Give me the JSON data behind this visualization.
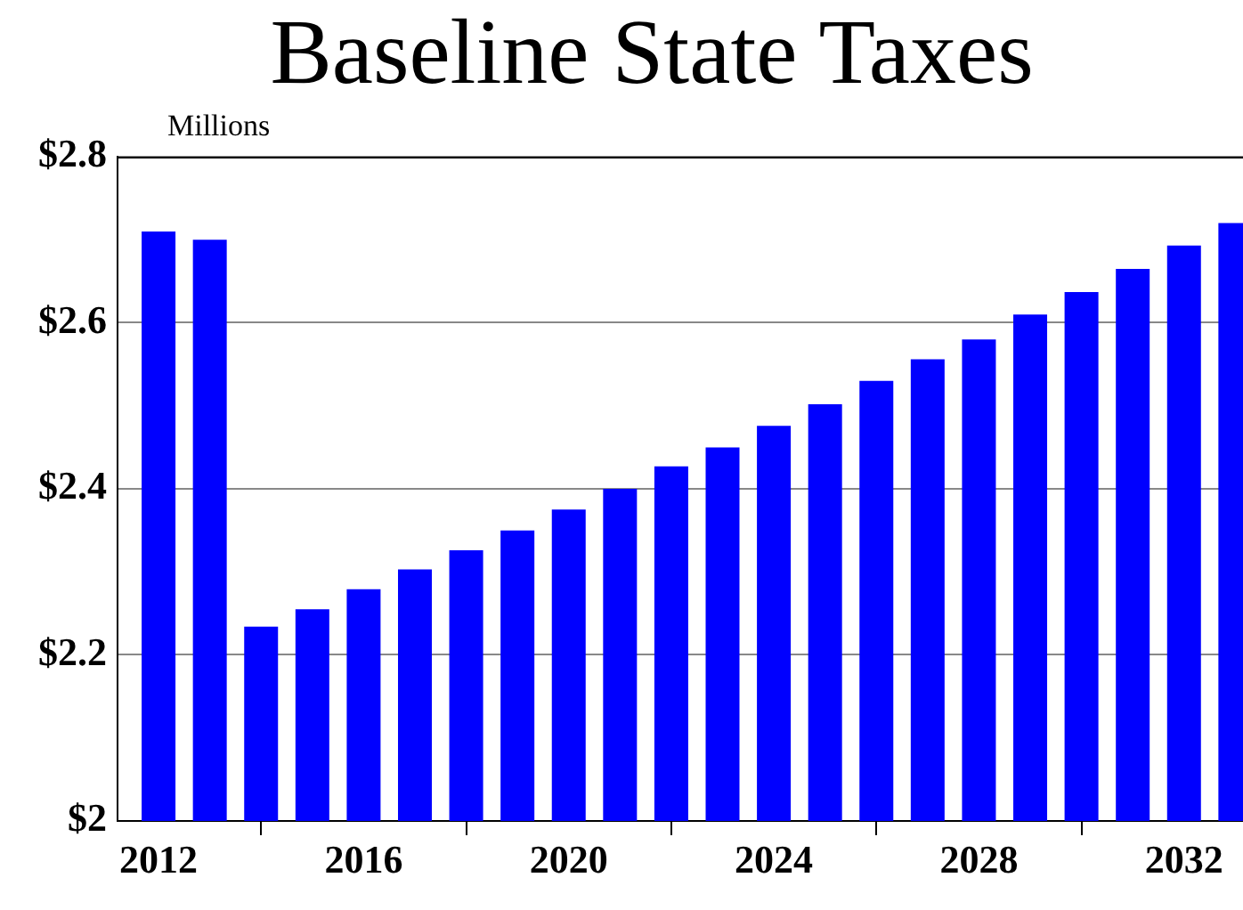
{
  "chart_data": {
    "type": "bar",
    "title": "Baseline State Taxes",
    "ylabel": "Millions",
    "x": [
      2012,
      2013,
      2014,
      2015,
      2016,
      2017,
      2018,
      2019,
      2020,
      2021,
      2022,
      2023,
      2024,
      2025,
      2026,
      2027,
      2028,
      2029,
      2030,
      2031,
      2032,
      2033
    ],
    "values": [
      2.71,
      2.7,
      2.234,
      2.255,
      2.279,
      2.303,
      2.326,
      2.35,
      2.375,
      2.4,
      2.427,
      2.45,
      2.476,
      2.502,
      2.53,
      2.556,
      2.58,
      2.61,
      2.637,
      2.665,
      2.693,
      2.72
    ],
    "color": "#0000ff",
    "xlim": [
      2011.2,
      2033.15
    ],
    "xticks": [
      2012,
      2016,
      2020,
      2024,
      2028,
      2032
    ],
    "ylim": [
      2,
      2.8
    ],
    "yticks": [
      {
        "value": 2,
        "label": "$2"
      },
      {
        "value": 2.2,
        "label": "$2.2"
      },
      {
        "value": 2.4,
        "label": "$2.4"
      },
      {
        "value": 2.6,
        "label": "$2.6"
      },
      {
        "value": 2.8,
        "label": "$2.8"
      }
    ],
    "grid": "y",
    "legend": false
  }
}
